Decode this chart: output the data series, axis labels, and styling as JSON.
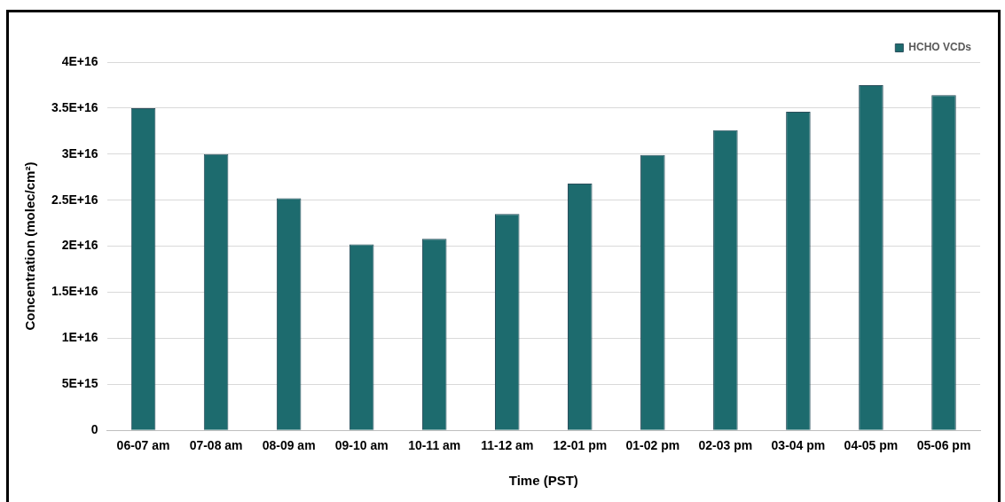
{
  "chart_data": {
    "type": "bar",
    "xlabel": "Time (PST)",
    "ylabel": "Concentration (molec/cm²)",
    "categories": [
      "06-07 am",
      "07-08 am",
      "08-09 am",
      "09-10 am",
      "10-11 am",
      "11-12 am",
      "12-01 pm",
      "01-02 pm",
      "02-03 pm",
      "03-04 pm",
      "04-05 pm",
      "05-06 pm"
    ],
    "series": [
      {
        "name": "HCHO VCDs",
        "color": "#1d6b6e",
        "values": [
          3.5e+16,
          3e+16,
          2.52e+16,
          2.02e+16,
          2.08e+16,
          2.35e+16,
          2.68e+16,
          2.99e+16,
          3.26e+16,
          3.46e+16,
          3.75e+16,
          3.64e+16
        ]
      }
    ],
    "ylim": [
      0,
      4e+16
    ],
    "yticks": [
      {
        "value": 0,
        "label": "0"
      },
      {
        "value": 5000000000000000.0,
        "label": "5E+15"
      },
      {
        "value": 1e+16,
        "label": "1E+16"
      },
      {
        "value": 1.5e+16,
        "label": "1.5E+16"
      },
      {
        "value": 2e+16,
        "label": "2E+16"
      },
      {
        "value": 2.5e+16,
        "label": "2.5E+16"
      },
      {
        "value": 3e+16,
        "label": "3E+16"
      },
      {
        "value": 3.5e+16,
        "label": "3.5E+16"
      },
      {
        "value": 4e+16,
        "label": "4E+16"
      }
    ],
    "grid": "y",
    "legend": "top right"
  }
}
